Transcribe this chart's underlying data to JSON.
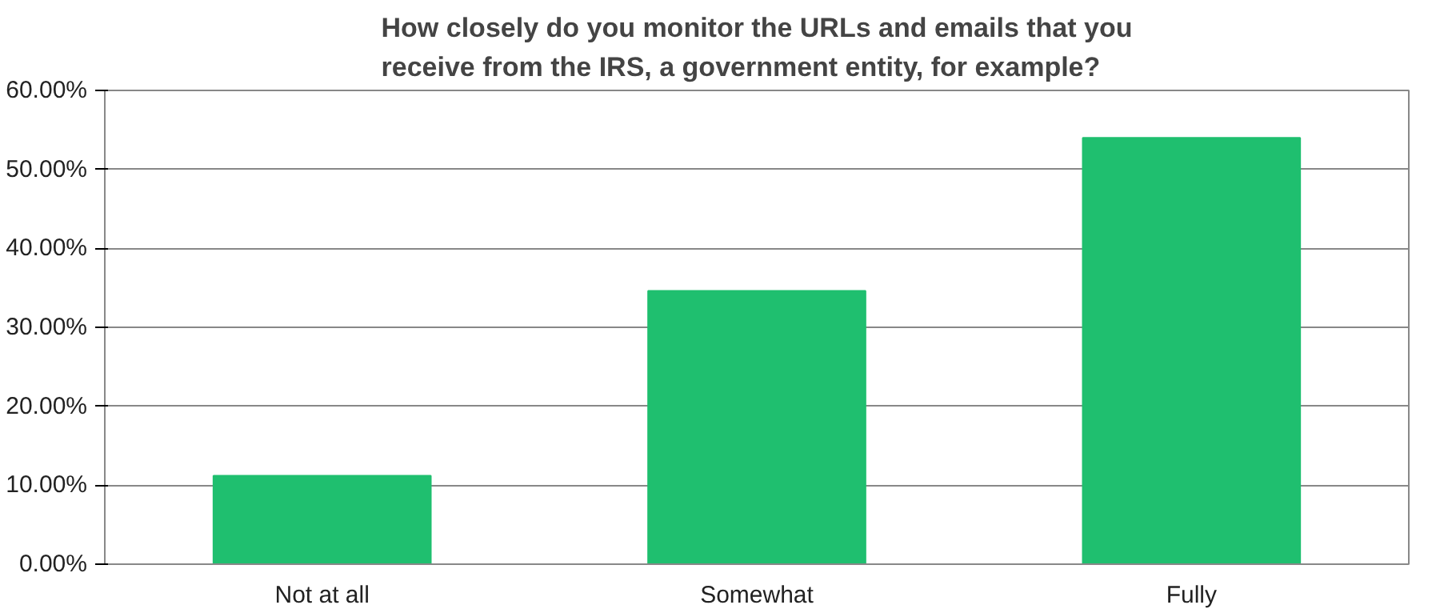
{
  "chart_data": {
    "type": "bar",
    "title": "How closely do you monitor the URLs and emails that you receive from the IRS, a government entity, for example?",
    "categories": [
      "Not at all",
      "Somewhat",
      "Fully"
    ],
    "values": [
      11.2,
      34.6,
      54.0
    ],
    "color": "#1fbf6f",
    "ylim": [
      0,
      60
    ],
    "yticks": [
      {
        "value": 0,
        "label": "0.00%"
      },
      {
        "value": 10,
        "label": "10.00%"
      },
      {
        "value": 20,
        "label": "20.00%"
      },
      {
        "value": 30,
        "label": "30.00%"
      },
      {
        "value": 40,
        "label": "40.00%"
      },
      {
        "value": 50,
        "label": "50.00%"
      },
      {
        "value": 60,
        "label": "60.00%"
      }
    ],
    "grid": "y"
  }
}
